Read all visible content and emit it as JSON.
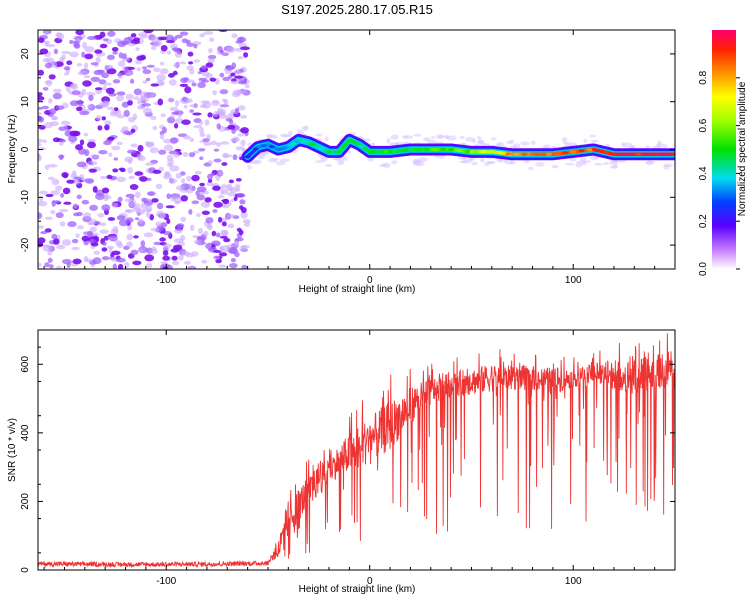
{
  "chart_data": [
    {
      "type": "heatmap",
      "title": "S197.2025.280.17.05.R15",
      "xlabel": "Height of straight line (km)",
      "ylabel": "Frequency (Hz)",
      "xlim": [
        -163,
        150
      ],
      "ylim": [
        -25,
        25
      ],
      "xticks": [
        -100,
        0,
        100
      ],
      "xtick_labels": [
        "-100",
        "0",
        "100"
      ],
      "yticks": [
        20,
        10,
        0,
        -10,
        -20
      ],
      "ytick_labels": [
        "20",
        "10",
        "0",
        "-10",
        "-20"
      ],
      "noise_region_x": [
        -163,
        -60
      ],
      "ridge": {
        "description": "frequency trace of peak spectral amplitude",
        "x": [
          -60,
          -55,
          -50,
          -45,
          -40,
          -35,
          -30,
          -25,
          -20,
          -15,
          -10,
          -5,
          0,
          10,
          20,
          30,
          40,
          50,
          60,
          70,
          80,
          90,
          100,
          110,
          120,
          130,
          140,
          150
        ],
        "y": [
          -1.5,
          0.5,
          1.0,
          0.0,
          0.5,
          2.0,
          1.5,
          0.5,
          -0.5,
          -0.5,
          2.0,
          1.0,
          -0.5,
          -0.5,
          0.0,
          0.0,
          0.0,
          -0.5,
          -0.5,
          -1.0,
          -1.0,
          -1.0,
          -0.5,
          0.0,
          -1.0,
          -1.0,
          -1.0,
          -1.0
        ],
        "amplitude": [
          0.2,
          0.3,
          0.35,
          0.3,
          0.35,
          0.45,
          0.4,
          0.45,
          0.4,
          0.45,
          0.5,
          0.45,
          0.5,
          0.5,
          0.5,
          0.55,
          0.55,
          0.6,
          0.7,
          0.8,
          0.85,
          0.9,
          0.85,
          0.9,
          0.95,
          0.95,
          0.95,
          0.95
        ]
      },
      "colorbar": {
        "label": "Normalized spectral amplitude",
        "range": [
          0,
          1
        ],
        "ticks": [
          0.0,
          0.2,
          0.4,
          0.6,
          0.8
        ],
        "tick_labels": [
          "0.0",
          "0.2",
          "0.4",
          "0.6",
          "0.8"
        ]
      }
    },
    {
      "type": "line",
      "title": "",
      "xlabel": "Height of straight line (km)",
      "ylabel": "SNR (10 * v/v)",
      "xlim": [
        -163,
        150
      ],
      "ylim": [
        0,
        700
      ],
      "xticks": [
        -100,
        0,
        100
      ],
      "xtick_labels": [
        "-100",
        "0",
        "100"
      ],
      "yticks": [
        0,
        200,
        400,
        600
      ],
      "ytick_labels": [
        "0",
        "200",
        "400",
        "600"
      ],
      "series": [
        {
          "name": "SNR",
          "color": "#ee3333",
          "envelope_x": [
            -163,
            -120,
            -80,
            -50,
            -45,
            -40,
            -35,
            -30,
            -25,
            -20,
            -15,
            -10,
            -5,
            0,
            5,
            10,
            15,
            20,
            30,
            40,
            50,
            60,
            70,
            80,
            90,
            100,
            110,
            120,
            130,
            140,
            150
          ],
          "envelope_median": [
            18,
            16,
            17,
            20,
            55,
            140,
            190,
            230,
            260,
            290,
            320,
            340,
            360,
            380,
            400,
            420,
            450,
            480,
            520,
            540,
            550,
            560,
            560,
            560,
            550,
            560,
            570,
            570,
            560,
            580,
            580
          ],
          "envelope_max": [
            45,
            30,
            30,
            35,
            120,
            240,
            300,
            330,
            360,
            380,
            420,
            470,
            510,
            520,
            560,
            580,
            590,
            600,
            610,
            620,
            640,
            650,
            640,
            640,
            640,
            620,
            640,
            660,
            680,
            690,
            700
          ]
        }
      ]
    }
  ]
}
